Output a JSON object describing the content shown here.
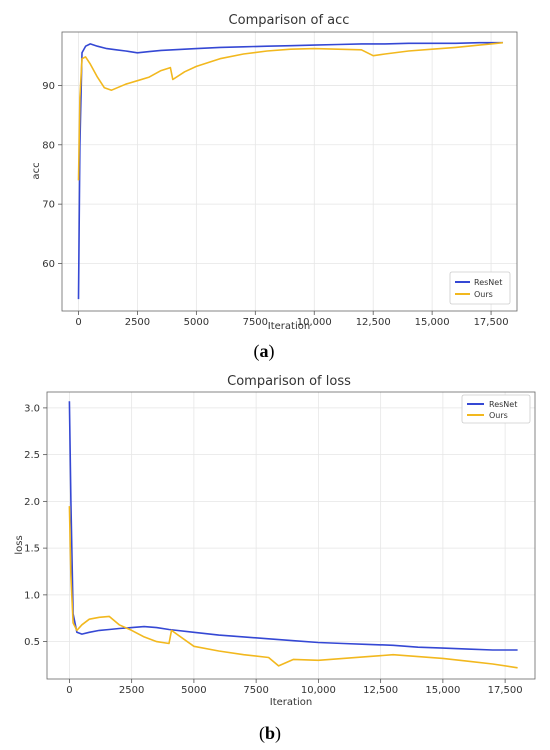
{
  "chart_data": [
    {
      "type": "line",
      "title": "Comparison of acc",
      "xlabel": "Iteration",
      "ylabel": "acc",
      "xlim": [
        -700,
        18600
      ],
      "ylim": [
        52,
        99
      ],
      "xticks": [
        0,
        2500,
        5000,
        7500,
        10000,
        12500,
        15000,
        17500
      ],
      "xtick_labels": [
        "0",
        "2500",
        "5000",
        "7500",
        "10,000",
        "12,500",
        "15,000",
        "17,500"
      ],
      "yticks": [
        60,
        70,
        80,
        90
      ],
      "ytick_labels": [
        "60",
        "70",
        "80",
        "90"
      ],
      "legend": "bottom-right",
      "caption": "(a)",
      "caption_letter": "a",
      "series": [
        {
          "name": "ResNet",
          "color": "#3548d4",
          "x": [
            0,
            60,
            150,
            300,
            500,
            800,
            1200,
            1600,
            2000,
            2500,
            3000,
            3500,
            4000,
            5000,
            6000,
            7000,
            8000,
            9000,
            10000,
            11000,
            12000,
            13000,
            14000,
            15000,
            16000,
            17000,
            17500,
            18000
          ],
          "y": [
            54,
            80,
            95.5,
            96.6,
            97,
            96.6,
            96.2,
            96,
            95.8,
            95.5,
            95.7,
            95.9,
            96,
            96.2,
            96.4,
            96.5,
            96.6,
            96.7,
            96.8,
            96.9,
            97,
            97,
            97.1,
            97.1,
            97.1,
            97.2,
            97.2,
            97.2
          ]
        },
        {
          "name": "Ours",
          "color": "#f2b81e",
          "x": [
            0,
            60,
            150,
            300,
            500,
            800,
            1100,
            1400,
            1700,
            2000,
            2500,
            3000,
            3500,
            3900,
            4000,
            4500,
            5000,
            6000,
            7000,
            8000,
            9000,
            10000,
            11000,
            12000,
            12500,
            13000,
            14000,
            15000,
            16000,
            17000,
            17500,
            18000
          ],
          "y": [
            74,
            88,
            94.5,
            94.8,
            93.6,
            91.4,
            89.6,
            89.2,
            89.7,
            90.2,
            90.8,
            91.4,
            92.5,
            93,
            91,
            92.3,
            93.2,
            94.5,
            95.3,
            95.8,
            96.1,
            96.2,
            96.1,
            96,
            95,
            95.3,
            95.8,
            96.1,
            96.4,
            96.8,
            97,
            97.2
          ]
        }
      ]
    },
    {
      "type": "line",
      "title": "Comparison of loss",
      "xlabel": "Iteration",
      "ylabel": "loss",
      "xlim": [
        -900,
        18700
      ],
      "ylim": [
        0.1,
        3.17
      ],
      "xticks": [
        0,
        2500,
        5000,
        7500,
        10000,
        12500,
        15000,
        17500
      ],
      "xtick_labels": [
        "0",
        "2500",
        "5000",
        "7500",
        "10,000",
        "12,500",
        "15,000",
        "17,500"
      ],
      "yticks": [
        0.5,
        1.0,
        1.5,
        2.0,
        2.5,
        3.0
      ],
      "ytick_labels": [
        "0.5",
        "1.0",
        "1.5",
        "2.0",
        "2.5",
        "3.0"
      ],
      "legend": "top-right",
      "caption": "(b)",
      "caption_letter": "b",
      "series": [
        {
          "name": "ResNet",
          "color": "#3548d4",
          "x": [
            0,
            60,
            150,
            300,
            500,
            800,
            1200,
            1600,
            2000,
            2500,
            3000,
            3500,
            4000,
            5000,
            6000,
            7000,
            8000,
            9000,
            10000,
            11000,
            12000,
            13000,
            14000,
            15000,
            16000,
            17000,
            17500,
            18000
          ],
          "y": [
            3.07,
            2.0,
            0.8,
            0.6,
            0.58,
            0.6,
            0.62,
            0.63,
            0.64,
            0.65,
            0.66,
            0.65,
            0.63,
            0.6,
            0.57,
            0.55,
            0.53,
            0.51,
            0.49,
            0.48,
            0.47,
            0.46,
            0.44,
            0.43,
            0.42,
            0.41,
            0.41,
            0.41
          ]
        },
        {
          "name": "Ours",
          "color": "#f2b81e",
          "x": [
            0,
            60,
            150,
            300,
            500,
            800,
            1200,
            1600,
            2000,
            2500,
            3000,
            3500,
            4000,
            4100,
            5000,
            6000,
            7000,
            8000,
            8400,
            9000,
            10000,
            11000,
            12000,
            13000,
            14000,
            15000,
            16000,
            17000,
            18000
          ],
          "y": [
            1.95,
            1.2,
            0.7,
            0.62,
            0.68,
            0.74,
            0.76,
            0.77,
            0.68,
            0.62,
            0.55,
            0.5,
            0.48,
            0.62,
            0.45,
            0.4,
            0.36,
            0.33,
            0.24,
            0.31,
            0.3,
            0.32,
            0.34,
            0.36,
            0.34,
            0.32,
            0.29,
            0.26,
            0.22
          ]
        }
      ]
    }
  ]
}
